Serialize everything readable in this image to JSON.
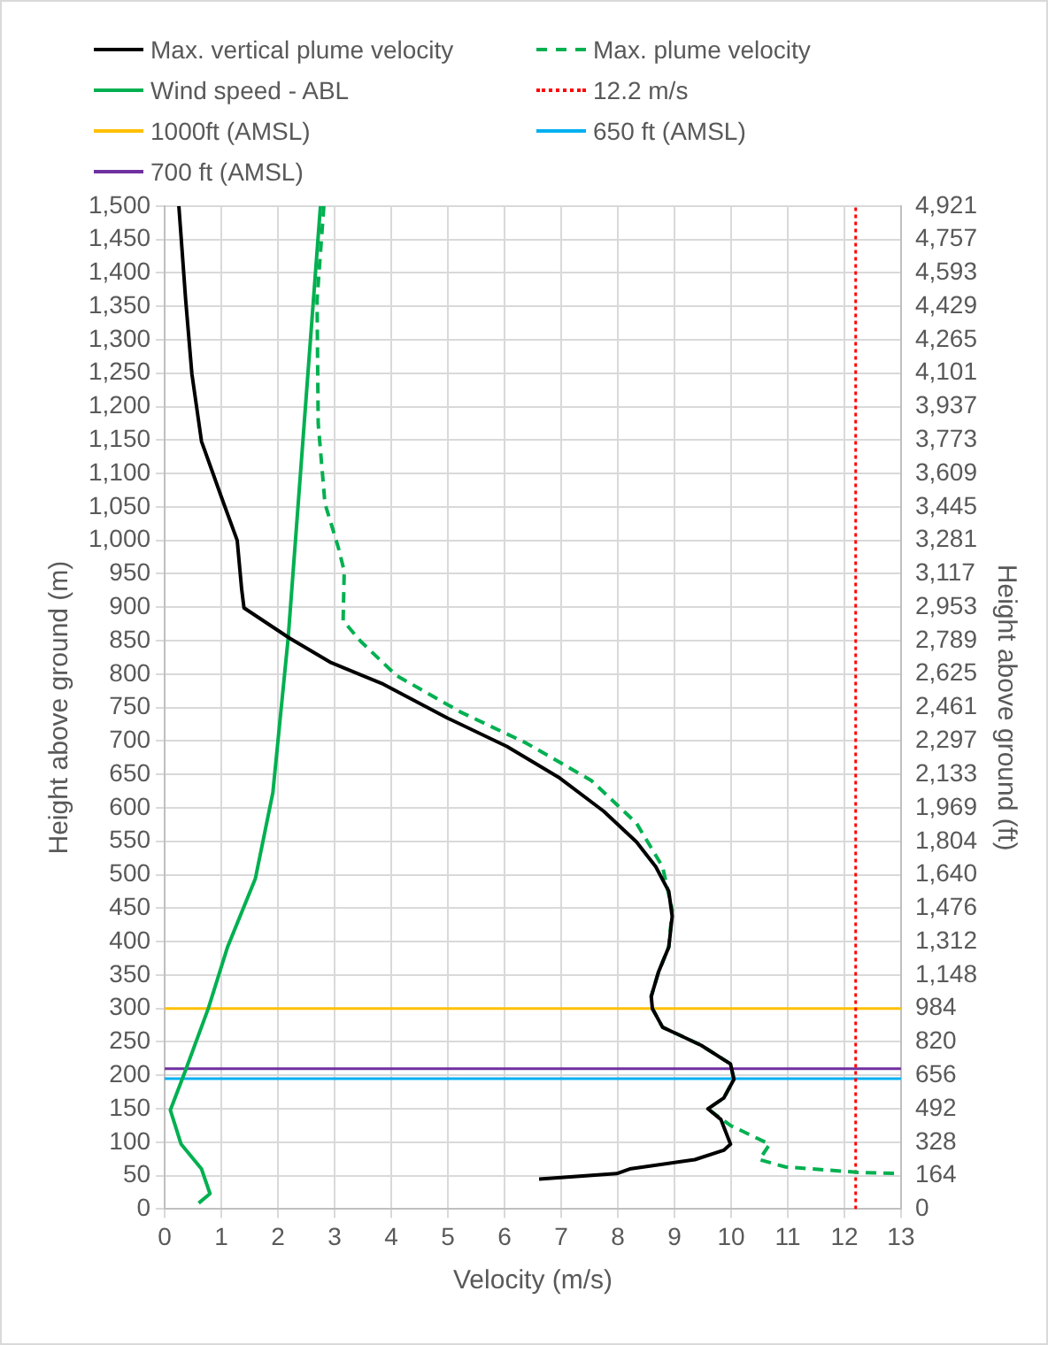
{
  "chart_data": {
    "type": "line",
    "xlabel": "Velocity (m/s)",
    "ylabel": "Height above ground (m)",
    "y2label": "Height above ground (ft)",
    "xlim": [
      0,
      13
    ],
    "xticks": [
      0,
      1,
      2,
      3,
      4,
      5,
      6,
      7,
      8,
      9,
      10,
      11,
      12,
      13
    ],
    "ylim": [
      0,
      1500
    ],
    "yticks": [
      0,
      50,
      100,
      150,
      200,
      250,
      300,
      350,
      400,
      450,
      500,
      550,
      600,
      650,
      700,
      750,
      800,
      850,
      900,
      950,
      {
        "value": 1000,
        "label": "1,000"
      },
      {
        "value": 1050,
        "label": "1,050"
      },
      {
        "value": 1100,
        "label": "1,100"
      },
      {
        "value": 1150,
        "label": "1,150"
      },
      {
        "value": 1200,
        "label": "1,200"
      },
      {
        "value": 1250,
        "label": "1,250"
      },
      {
        "value": 1300,
        "label": "1,300"
      },
      {
        "value": 1350,
        "label": "1,350"
      },
      {
        "value": 1400,
        "label": "1,400"
      },
      {
        "value": 1450,
        "label": "1,450"
      },
      {
        "value": 1500,
        "label": "1,500"
      }
    ],
    "y2lim": [
      0,
      4921
    ],
    "y2ticks": [
      0,
      164,
      328,
      492,
      656,
      820,
      984,
      {
        "value": 1148,
        "label": "1,148"
      },
      {
        "value": 1312,
        "label": "1,312"
      },
      {
        "value": 1476,
        "label": "1,476"
      },
      {
        "value": 1640,
        "label": "1,640"
      },
      {
        "value": 1804,
        "label": "1,804"
      },
      {
        "value": 1969,
        "label": "1,969"
      },
      {
        "value": 2133,
        "label": "2,133"
      },
      {
        "value": 2297,
        "label": "2,297"
      },
      {
        "value": 2461,
        "label": "2,461"
      },
      {
        "value": 2625,
        "label": "2,625"
      },
      {
        "value": 2789,
        "label": "2,789"
      },
      {
        "value": 2953,
        "label": "2,953"
      },
      {
        "value": 3117,
        "label": "3,117"
      },
      {
        "value": 3281,
        "label": "3,281"
      },
      {
        "value": 3445,
        "label": "3,445"
      },
      {
        "value": 3609,
        "label": "3,609"
      },
      {
        "value": 3773,
        "label": "3,773"
      },
      {
        "value": 3937,
        "label": "3,937"
      },
      {
        "value": 4101,
        "label": "4,101"
      },
      {
        "value": 4265,
        "label": "4,265"
      },
      {
        "value": 4429,
        "label": "4,429"
      },
      {
        "value": 4593,
        "label": "4,593"
      },
      {
        "value": 4757,
        "label": "4,757"
      },
      {
        "value": 4921,
        "label": "4,921"
      }
    ],
    "grid": true,
    "legend": "top",
    "marker": "none",
    "series": [
      {
        "name": "Max. vertical plume velocity",
        "color": "#000000",
        "line_style": "solid",
        "x": [
          0.25,
          0.37,
          0.48,
          0.65,
          1.0,
          1.28,
          1.36,
          1.4,
          2.2,
          2.94,
          3.86,
          5.0,
          6.04,
          6.95,
          7.75,
          8.33,
          8.67,
          8.9,
          8.96,
          8.9,
          8.72,
          8.59,
          8.61,
          8.79,
          9.47,
          9.99,
          10.05,
          9.87,
          9.59,
          9.82,
          9.99,
          9.87,
          9.36,
          8.21,
          7.98,
          6.61
        ],
        "values": [
          1500,
          1360,
          1249,
          1148,
          1065,
          1000,
          926,
          899,
          854,
          817,
          785,
          734,
          692,
          646,
          595,
          549,
          512,
          475,
          438,
          392,
          355,
          318,
          300,
          272,
          245,
          217,
          194,
          166,
          150,
          134,
          97,
          88,
          74,
          60,
          53,
          45
        ]
      },
      {
        "name": "Max. plume velocity",
        "color": "#00b050",
        "line_style": "dashed",
        "x": [
          2.81,
          2.69,
          2.71,
          2.83,
          3.06,
          3.17,
          3.15,
          3.46,
          4.09,
          5.23,
          6.38,
          7.53,
          8.33,
          8.79,
          8.96,
          8.9,
          8.72,
          8.59,
          8.61,
          8.79,
          9.47,
          9.99,
          10.05,
          9.87,
          9.59,
          9.99,
          10.68,
          10.5,
          10.96,
          12.22,
          13
        ],
        "values": [
          1500,
          1360,
          1175,
          1055,
          991,
          954,
          880,
          849,
          798,
          743,
          697,
          641,
          577,
          512,
          448,
          392,
          355,
          318,
          300,
          272,
          245,
          217,
          194,
          166,
          150,
          125,
          97,
          74,
          63,
          55,
          53
        ]
      },
      {
        "name": "Wind speed - ABL",
        "color": "#00b050",
        "line_style": "solid",
        "x": [
          2.75,
          2.18,
          2.05,
          1.91,
          1.6,
          1.11,
          0.77,
          0.37,
          0.1,
          0.29,
          0.65,
          0.8,
          0.6
        ],
        "values": [
          1500,
          854,
          743,
          623,
          494,
          392,
          300,
          208,
          148,
          97,
          60,
          23,
          9
        ]
      }
    ],
    "ref_lines": [
      {
        "axis": "x",
        "value": 12.2,
        "label": "12.2 m/s",
        "color": "#ff0000",
        "line_style": "dotted"
      },
      {
        "axis": "y",
        "value": 300,
        "label": "1000ft (AMSL)",
        "color": "#ffc000",
        "line_style": "solid"
      },
      {
        "axis": "y",
        "value": 195,
        "label": "650 ft (AMSL)",
        "color": "#00b0f0",
        "line_style": "solid"
      },
      {
        "axis": "y",
        "value": 210,
        "label": "700 ft (AMSL)",
        "color": "#7030a0",
        "line_style": "solid"
      }
    ]
  }
}
